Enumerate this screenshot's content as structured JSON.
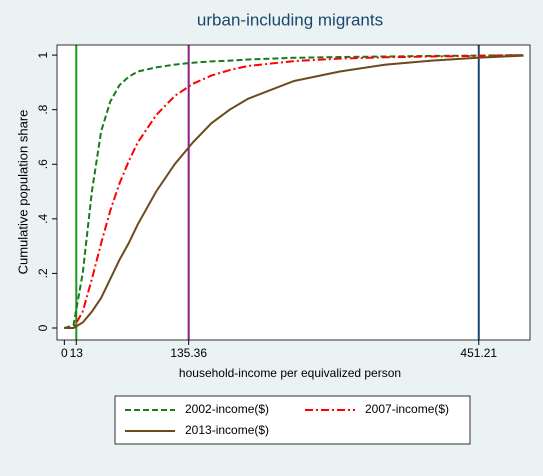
{
  "chart_data": {
    "type": "line",
    "title": "urban-including migrants",
    "x_label": "household-income per equivalized person",
    "y_label": "Cumulative population share",
    "x": [
      0,
      10,
      20,
      30,
      40,
      50,
      60,
      70,
      80,
      100,
      120,
      140,
      160,
      180,
      200,
      250,
      300,
      350,
      400,
      450,
      500
    ],
    "series": [
      {
        "name": "2002-income($)",
        "color": "#1a7a1a",
        "style": "dashed",
        "values": [
          0,
          0.01,
          0.2,
          0.5,
          0.72,
          0.83,
          0.89,
          0.92,
          0.94,
          0.955,
          0.965,
          0.972,
          0.977,
          0.98,
          0.984,
          0.99,
          0.993,
          0.995,
          0.997,
          0.998,
          1
        ]
      },
      {
        "name": "2007-income($)",
        "color": "#ff0000",
        "style": "dashdot",
        "values": [
          0,
          0,
          0.06,
          0.18,
          0.31,
          0.43,
          0.53,
          0.61,
          0.68,
          0.78,
          0.85,
          0.895,
          0.925,
          0.945,
          0.96,
          0.978,
          0.987,
          0.992,
          0.995,
          0.997,
          1
        ]
      },
      {
        "name": "2013-income($)",
        "color": "#6b4a1e",
        "style": "solid",
        "values": [
          0,
          0,
          0.02,
          0.06,
          0.11,
          0.18,
          0.25,
          0.31,
          0.38,
          0.5,
          0.6,
          0.68,
          0.75,
          0.8,
          0.84,
          0.905,
          0.94,
          0.965,
          0.98,
          0.99,
          0.998
        ]
      }
    ],
    "xlim": [
      -8,
      507
    ],
    "ylim": [
      -0.044,
      1.037
    ],
    "xticks": [
      0,
      13,
      135.36,
      451.21
    ],
    "yticks": [
      0,
      {
        "value": 0.2,
        "label": ".2"
      },
      {
        "value": 0.4,
        "label": ".4"
      },
      {
        "value": 0.6,
        "label": ".6"
      },
      {
        "value": 0.8,
        "label": ".8"
      },
      1
    ],
    "reference_lines": [
      {
        "x": 13,
        "color": "#1a9a1a"
      },
      {
        "x": 135.36,
        "color": "#8b1a8b"
      },
      {
        "x": 451.21,
        "color": "#1a476f"
      }
    ]
  }
}
